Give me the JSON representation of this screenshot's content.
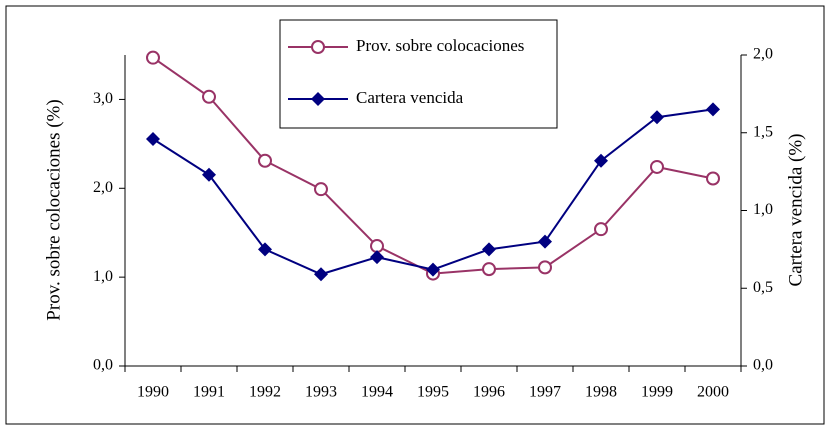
{
  "chart_data": {
    "type": "line",
    "categories": [
      "1990",
      "1991",
      "1992",
      "1993",
      "1994",
      "1995",
      "1996",
      "1997",
      "1998",
      "1999",
      "2000"
    ],
    "series": [
      {
        "name": "Prov. sobre colocaciones",
        "color": "#993366",
        "marker": "circle",
        "axis": "y",
        "values": [
          3.47,
          3.03,
          2.31,
          1.99,
          1.35,
          1.04,
          1.09,
          1.11,
          1.54,
          2.24,
          2.11
        ]
      },
      {
        "name": "Cartera vencida",
        "color": "#000080",
        "marker": "diamond",
        "axis": "y2",
        "values": [
          1.46,
          1.23,
          0.75,
          0.59,
          0.7,
          0.62,
          0.75,
          0.8,
          1.32,
          1.6,
          1.65
        ]
      }
    ],
    "y_label": "Prov. sobre colocaciones (%)",
    "y2_label": "Cartera vencida (%)",
    "ylim": [
      0,
      3.5
    ],
    "yticks": [
      {
        "value": 0,
        "label": "0,0"
      },
      {
        "value": 1,
        "label": "1,0"
      },
      {
        "value": 2,
        "label": "2,0"
      },
      {
        "value": 3,
        "label": "3,0"
      }
    ],
    "y2lim": [
      0,
      2
    ],
    "y2ticks": [
      {
        "value": 0,
        "label": "0,0"
      },
      {
        "value": 0.5,
        "label": "0,5"
      },
      {
        "value": 1,
        "label": "1,0"
      },
      {
        "value": 1.5,
        "label": "1,5"
      },
      {
        "value": 2,
        "label": "2,0"
      }
    ],
    "grid": false
  }
}
